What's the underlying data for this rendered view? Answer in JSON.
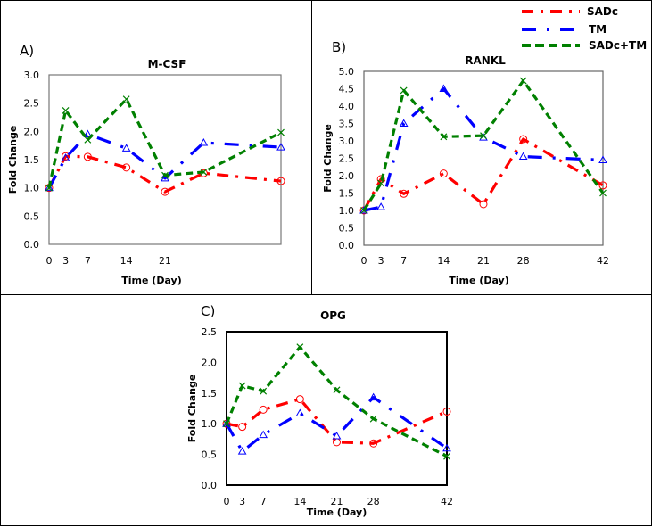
{
  "legend": {
    "entries": [
      {
        "name": "SADc",
        "color": "#ff0000",
        "style": "dash-dot",
        "marker": "circle"
      },
      {
        "name": "TM",
        "color": "#0000ff",
        "style": "long-dash-dot",
        "marker": "triangle"
      },
      {
        "name": "SADc+TM",
        "color": "#008000",
        "style": "dash",
        "marker": "x"
      }
    ]
  },
  "chart_data": [
    {
      "type": "line",
      "panel_label": "A)",
      "title": "M-CSF",
      "xlabel": "Time (Day)",
      "ylabel": "Fold Change",
      "x": [
        0,
        3,
        7,
        14,
        21,
        28,
        42
      ],
      "xticks": [
        0,
        3,
        7,
        14,
        21
      ],
      "xlim": [
        0,
        42
      ],
      "ylim": [
        0,
        3.0
      ],
      "yticks": [
        "0.0",
        "0.5",
        "1.0",
        "1.5",
        "2.0",
        "2.5",
        "3.0"
      ],
      "grid": false,
      "series": [
        {
          "name": "SADc",
          "values": [
            1.0,
            1.56,
            1.55,
            1.36,
            0.93,
            1.26,
            1.12
          ]
        },
        {
          "name": "TM",
          "values": [
            1.0,
            1.53,
            1.95,
            1.7,
            1.17,
            1.8,
            1.72
          ]
        },
        {
          "name": "SADc+TM",
          "values": [
            1.0,
            2.37,
            1.85,
            2.57,
            1.22,
            1.28,
            1.98
          ]
        }
      ]
    },
    {
      "type": "line",
      "panel_label": "B)",
      "title": "RANKL",
      "xlabel": "Time (Day)",
      "ylabel": "Fold Change",
      "x": [
        0,
        3,
        7,
        14,
        21,
        28,
        42
      ],
      "xticks": [
        0,
        3,
        7,
        14,
        21,
        28,
        42
      ],
      "xlim": [
        0,
        42
      ],
      "ylim": [
        0,
        5.0
      ],
      "yticks": [
        "0.0",
        "0.5",
        "1.0",
        "1.5",
        "2.0",
        "2.5",
        "3.0",
        "3.5",
        "4.0",
        "4.5",
        "5.0"
      ],
      "grid": false,
      "series": [
        {
          "name": "SADc",
          "values": [
            1.0,
            1.9,
            1.48,
            2.06,
            1.18,
            3.05,
            1.72
          ]
        },
        {
          "name": "TM",
          "values": [
            1.0,
            1.1,
            3.5,
            4.5,
            3.1,
            2.55,
            2.45
          ]
        },
        {
          "name": "SADc+TM",
          "values": [
            1.0,
            1.78,
            4.45,
            3.12,
            3.15,
            4.73,
            1.5
          ]
        }
      ]
    },
    {
      "type": "line",
      "panel_label": "C)",
      "title": "OPG",
      "xlabel": "Time (Day)",
      "ylabel": "Fold Change",
      "x": [
        0,
        3,
        7,
        14,
        21,
        28,
        42
      ],
      "xticks": [
        0,
        3,
        7,
        14,
        21,
        28,
        42
      ],
      "xlim": [
        0,
        42
      ],
      "ylim": [
        0,
        2.5
      ],
      "yticks": [
        "0.0",
        "0.5",
        "1.0",
        "1.5",
        "2.0",
        "2.5"
      ],
      "grid": false,
      "series": [
        {
          "name": "SADc",
          "values": [
            1.0,
            0.95,
            1.23,
            1.4,
            0.7,
            0.68,
            1.2
          ]
        },
        {
          "name": "TM",
          "values": [
            1.0,
            0.55,
            0.82,
            1.17,
            0.8,
            1.43,
            0.6
          ]
        },
        {
          "name": "SADc+TM",
          "values": [
            1.0,
            1.62,
            1.53,
            2.25,
            1.55,
            1.08,
            0.47
          ]
        }
      ]
    }
  ]
}
